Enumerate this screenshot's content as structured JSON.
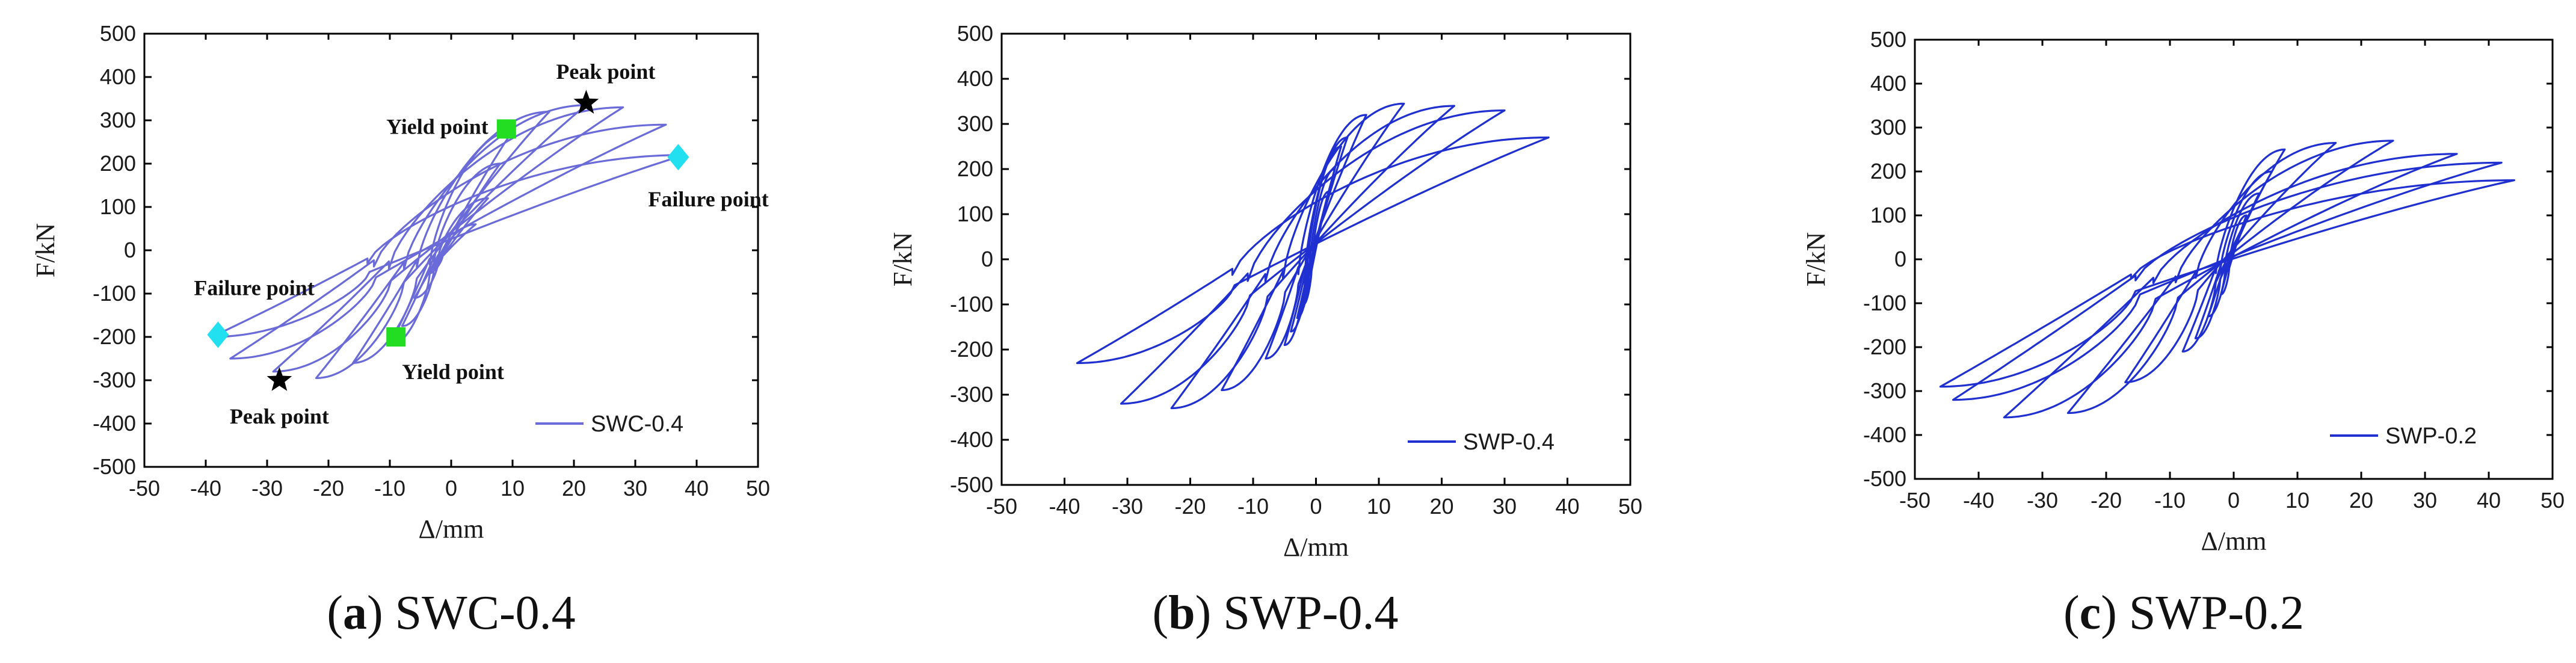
{
  "chart_data": [
    {
      "type": "line",
      "id": "a",
      "caption_letter": "a",
      "caption_text": " SWC-0.4",
      "xlabel": "Δ/mm",
      "ylabel": "F/kN",
      "xlim": [
        -50,
        50
      ],
      "ylim": [
        -500,
        500
      ],
      "xticks": [
        -50,
        -40,
        -30,
        -20,
        -10,
        0,
        10,
        20,
        30,
        40,
        50
      ],
      "yticks": [
        -500,
        -400,
        -300,
        -200,
        -100,
        0,
        100,
        200,
        300,
        400,
        500
      ],
      "legend": "SWC-0.4",
      "legend_position": "lower-right",
      "line_color": "#6a6ad8",
      "loops": [
        {
          "amp_pos": 4,
          "amp_neg": 4,
          "peak_pos": 60,
          "peak_neg": 55
        },
        {
          "amp_pos": 6,
          "amp_neg": 6,
          "peak_pos": 120,
          "peak_neg": 110
        },
        {
          "amp_pos": 8,
          "amp_neg": 8,
          "peak_pos": 200,
          "peak_neg": 175
        },
        {
          "amp_pos": 10,
          "amp_neg": 10,
          "peak_pos": 275,
          "peak_neg": 220
        },
        {
          "amp_pos": 16,
          "amp_neg": 16,
          "peak_pos": 320,
          "peak_neg": 260
        },
        {
          "amp_pos": 22,
          "amp_neg": 22,
          "peak_pos": 335,
          "peak_neg": 295
        },
        {
          "amp_pos": 28,
          "amp_neg": 29,
          "peak_pos": 330,
          "peak_neg": 280
        },
        {
          "amp_pos": 35,
          "amp_neg": 36,
          "peak_pos": 290,
          "peak_neg": 250
        },
        {
          "amp_pos": 38,
          "amp_neg": 39,
          "peak_pos": 220,
          "peak_neg": 200
        }
      ],
      "markers": [
        {
          "kind": "yield",
          "label": "Yield point",
          "x": 9,
          "y": 280
        },
        {
          "kind": "yield",
          "label": "Yield point",
          "x": -9,
          "y": -200
        },
        {
          "kind": "peak",
          "label": "Peak point",
          "x": 22,
          "y": 340
        },
        {
          "kind": "peak",
          "label": "Peak point",
          "x": -28,
          "y": -300
        },
        {
          "kind": "failure",
          "label": "Failure point",
          "x": 37,
          "y": 215
        },
        {
          "kind": "failure",
          "label": "Failure point",
          "x": -38,
          "y": -195
        }
      ]
    },
    {
      "type": "line",
      "id": "b",
      "caption_letter": "b",
      "caption_text": " SWP-0.4",
      "xlabel": "Δ/mm",
      "ylabel": "F/kN",
      "xlim": [
        -50,
        50
      ],
      "ylim": [
        -500,
        500
      ],
      "xticks": [
        -50,
        -40,
        -30,
        -20,
        -10,
        0,
        10,
        20,
        30,
        40,
        50
      ],
      "yticks": [
        -500,
        -400,
        -300,
        -200,
        -100,
        0,
        100,
        200,
        300,
        400,
        500
      ],
      "legend": "SWP-0.4",
      "legend_position": "lower-right",
      "line_color": "#1f2fd0",
      "loops": [
        {
          "amp_pos": 2,
          "amp_neg": 2,
          "peak_pos": 150,
          "peak_neg": 100
        },
        {
          "amp_pos": 3,
          "amp_neg": 3,
          "peak_pos": 200,
          "peak_neg": 130
        },
        {
          "amp_pos": 4,
          "amp_neg": 4,
          "peak_pos": 250,
          "peak_neg": 160
        },
        {
          "amp_pos": 5,
          "amp_neg": 5,
          "peak_pos": 270,
          "peak_neg": 190
        },
        {
          "amp_pos": 8,
          "amp_neg": 8,
          "peak_pos": 320,
          "peak_neg": 220
        },
        {
          "amp_pos": 14,
          "amp_neg": 15,
          "peak_pos": 345,
          "peak_neg": 290
        },
        {
          "amp_pos": 22,
          "amp_neg": 23,
          "peak_pos": 340,
          "peak_neg": 330
        },
        {
          "amp_pos": 30,
          "amp_neg": 31,
          "peak_pos": 330,
          "peak_neg": 320
        },
        {
          "amp_pos": 37,
          "amp_neg": 38,
          "peak_pos": 270,
          "peak_neg": 230
        }
      ],
      "markers": []
    },
    {
      "type": "line",
      "id": "c",
      "caption_letter": "c",
      "caption_text": " SWP-0.2",
      "xlabel": "Δ/mm",
      "ylabel": "F/kN",
      "xlim": [
        -50,
        50
      ],
      "ylim": [
        -500,
        500
      ],
      "xticks": [
        -50,
        -40,
        -30,
        -20,
        -10,
        0,
        10,
        20,
        30,
        40,
        50
      ],
      "yticks": [
        -500,
        -400,
        -300,
        -200,
        -100,
        0,
        100,
        200,
        300,
        400,
        500
      ],
      "legend": "SWP-0.2",
      "legend_position": "lower-right",
      "line_color": "#1f2fd0",
      "loops": [
        {
          "amp_pos": 2,
          "amp_neg": 2,
          "peak_pos": 100,
          "peak_neg": 80
        },
        {
          "amp_pos": 4,
          "amp_neg": 4,
          "peak_pos": 150,
          "peak_neg": 130
        },
        {
          "amp_pos": 6,
          "amp_neg": 6,
          "peak_pos": 200,
          "peak_neg": 180
        },
        {
          "amp_pos": 8,
          "amp_neg": 8,
          "peak_pos": 250,
          "peak_neg": 210
        },
        {
          "amp_pos": 16,
          "amp_neg": 17,
          "peak_pos": 265,
          "peak_neg": 280
        },
        {
          "amp_pos": 25,
          "amp_neg": 26,
          "peak_pos": 270,
          "peak_neg": 350
        },
        {
          "amp_pos": 35,
          "amp_neg": 36,
          "peak_pos": 240,
          "peak_neg": 360
        },
        {
          "amp_pos": 42,
          "amp_neg": 44,
          "peak_pos": 220,
          "peak_neg": 320
        },
        {
          "amp_pos": 44,
          "amp_neg": 46,
          "peak_pos": 180,
          "peak_neg": 290
        }
      ],
      "markers": []
    }
  ]
}
